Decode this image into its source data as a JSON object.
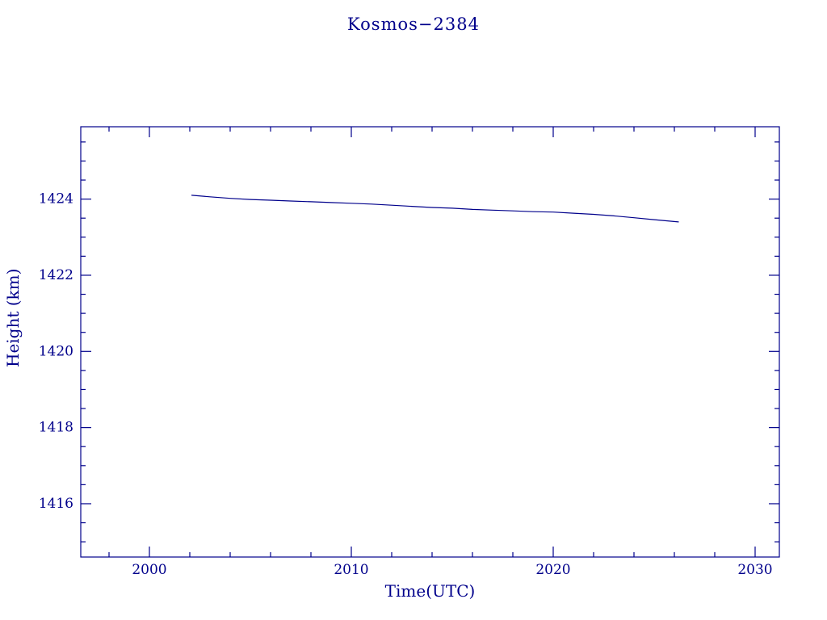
{
  "chart_data": {
    "type": "line",
    "title": "Kosmos−2384",
    "xlabel": "Time(UTC)",
    "ylabel": "Height (km)",
    "xlim": [
      1996.6,
      2031.2
    ],
    "ylim": [
      1414.6,
      1425.9
    ],
    "x_major_ticks": [
      2000,
      2010,
      2020,
      2030
    ],
    "x_minor_step": 2,
    "y_major_ticks": [
      1416,
      1418,
      1420,
      1422,
      1424
    ],
    "y_minor_step": 0.5,
    "grid": false,
    "legend": "none",
    "line_color": "#00008b",
    "axis_color": "#00008b",
    "text_color": "#00008b",
    "series": [
      {
        "name": "height",
        "x": [
          2002.1,
          2003,
          2004,
          2005,
          2006,
          2007,
          2008,
          2009,
          2010,
          2011,
          2012,
          2013,
          2014,
          2015,
          2016,
          2017,
          2018,
          2019,
          2020,
          2021,
          2022,
          2023,
          2024,
          2025,
          2026.2
        ],
        "y": [
          1424.1,
          1424.06,
          1424.02,
          1423.99,
          1423.97,
          1423.95,
          1423.93,
          1423.91,
          1423.89,
          1423.87,
          1423.84,
          1423.81,
          1423.78,
          1423.76,
          1423.73,
          1423.71,
          1423.69,
          1423.67,
          1423.66,
          1423.63,
          1423.6,
          1423.56,
          1423.51,
          1423.46,
          1423.4
        ]
      }
    ]
  }
}
